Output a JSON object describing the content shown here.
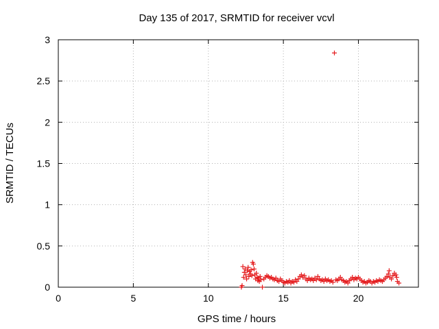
{
  "chart_data": {
    "type": "scatter",
    "title": "Day 135 of 2017, SRMTID for receiver vcvl",
    "xlabel": "GPS time / hours",
    "ylabel": "SRMTID / TECUs",
    "xlim": [
      0,
      24
    ],
    "ylim": [
      0,
      3
    ],
    "xticks": [
      "0",
      "5",
      "10",
      "15",
      "20"
    ],
    "yticks": [
      "0",
      "0.5",
      "1",
      "1.5",
      "2",
      "2.5",
      "3"
    ],
    "grid": true,
    "marker": "plus",
    "color": "#e41a1c",
    "series": [
      {
        "points": [
          [
            12.2,
            0.0
          ],
          [
            12.25,
            0.02
          ],
          [
            12.3,
            0.25
          ],
          [
            12.35,
            0.12
          ],
          [
            12.4,
            0.18
          ],
          [
            12.45,
            0.22
          ],
          [
            12.5,
            0.15
          ],
          [
            12.55,
            0.1
          ],
          [
            12.6,
            0.2
          ],
          [
            12.65,
            0.24
          ],
          [
            12.7,
            0.13
          ],
          [
            12.75,
            0.19
          ],
          [
            12.8,
            0.16
          ],
          [
            12.85,
            0.21
          ],
          [
            12.9,
            0.14
          ],
          [
            12.95,
            0.3
          ],
          [
            13.0,
            0.28
          ],
          [
            13.05,
            0.22
          ],
          [
            13.1,
            0.15
          ],
          [
            13.15,
            0.1
          ],
          [
            13.2,
            0.17
          ],
          [
            13.25,
            0.12
          ],
          [
            13.3,
            0.08
          ],
          [
            13.35,
            0.11
          ],
          [
            13.4,
            0.07
          ],
          [
            13.45,
            0.13
          ],
          [
            13.5,
            0.09
          ],
          [
            13.6,
            0.0
          ],
          [
            13.7,
            0.1
          ],
          [
            13.8,
            0.12
          ],
          [
            13.9,
            0.14
          ],
          [
            14.0,
            0.13
          ],
          [
            14.1,
            0.11
          ],
          [
            14.2,
            0.12
          ],
          [
            14.3,
            0.1
          ],
          [
            14.4,
            0.09
          ],
          [
            14.5,
            0.11
          ],
          [
            14.6,
            0.08
          ],
          [
            14.7,
            0.07
          ],
          [
            14.8,
            0.1
          ],
          [
            14.9,
            0.08
          ],
          [
            15.0,
            0.06
          ],
          [
            15.1,
            0.05
          ],
          [
            15.2,
            0.07
          ],
          [
            15.3,
            0.06
          ],
          [
            15.4,
            0.08
          ],
          [
            15.5,
            0.05
          ],
          [
            15.6,
            0.07
          ],
          [
            15.7,
            0.06
          ],
          [
            15.8,
            0.09
          ],
          [
            15.9,
            0.07
          ],
          [
            16.0,
            0.1
          ],
          [
            16.1,
            0.13
          ],
          [
            16.2,
            0.15
          ],
          [
            16.3,
            0.12
          ],
          [
            16.4,
            0.14
          ],
          [
            16.5,
            0.1
          ],
          [
            16.6,
            0.08
          ],
          [
            16.7,
            0.11
          ],
          [
            16.8,
            0.09
          ],
          [
            16.9,
            0.1
          ],
          [
            17.0,
            0.08
          ],
          [
            17.1,
            0.11
          ],
          [
            17.2,
            0.09
          ],
          [
            17.3,
            0.13
          ],
          [
            17.4,
            0.1
          ],
          [
            17.5,
            0.08
          ],
          [
            17.6,
            0.09
          ],
          [
            17.7,
            0.07
          ],
          [
            17.8,
            0.1
          ],
          [
            17.9,
            0.08
          ],
          [
            18.0,
            0.09
          ],
          [
            18.1,
            0.07
          ],
          [
            18.2,
            0.08
          ],
          [
            18.3,
            0.06
          ],
          [
            18.4,
            2.84
          ],
          [
            18.5,
            0.09
          ],
          [
            18.6,
            0.08
          ],
          [
            18.7,
            0.1
          ],
          [
            18.8,
            0.12
          ],
          [
            18.9,
            0.09
          ],
          [
            19.0,
            0.08
          ],
          [
            19.1,
            0.06
          ],
          [
            19.2,
            0.07
          ],
          [
            19.3,
            0.05
          ],
          [
            19.4,
            0.08
          ],
          [
            19.5,
            0.1
          ],
          [
            19.6,
            0.12
          ],
          [
            19.7,
            0.09
          ],
          [
            19.8,
            0.11
          ],
          [
            19.9,
            0.1
          ],
          [
            20.0,
            0.12
          ],
          [
            20.1,
            0.1
          ],
          [
            20.2,
            0.08
          ],
          [
            20.3,
            0.06
          ],
          [
            20.4,
            0.07
          ],
          [
            20.5,
            0.05
          ],
          [
            20.6,
            0.06
          ],
          [
            20.7,
            0.08
          ],
          [
            20.8,
            0.07
          ],
          [
            20.9,
            0.05
          ],
          [
            21.0,
            0.07
          ],
          [
            21.1,
            0.06
          ],
          [
            21.2,
            0.08
          ],
          [
            21.3,
            0.07
          ],
          [
            21.4,
            0.09
          ],
          [
            21.5,
            0.08
          ],
          [
            21.6,
            0.07
          ],
          [
            21.7,
            0.09
          ],
          [
            21.8,
            0.11
          ],
          [
            21.9,
            0.13
          ],
          [
            22.0,
            0.16
          ],
          [
            22.05,
            0.2
          ],
          [
            22.1,
            0.12
          ],
          [
            22.2,
            0.1
          ],
          [
            22.3,
            0.14
          ],
          [
            22.4,
            0.17
          ],
          [
            22.5,
            0.15
          ],
          [
            22.55,
            0.12
          ],
          [
            22.6,
            0.07
          ],
          [
            22.7,
            0.05
          ]
        ]
      }
    ]
  }
}
